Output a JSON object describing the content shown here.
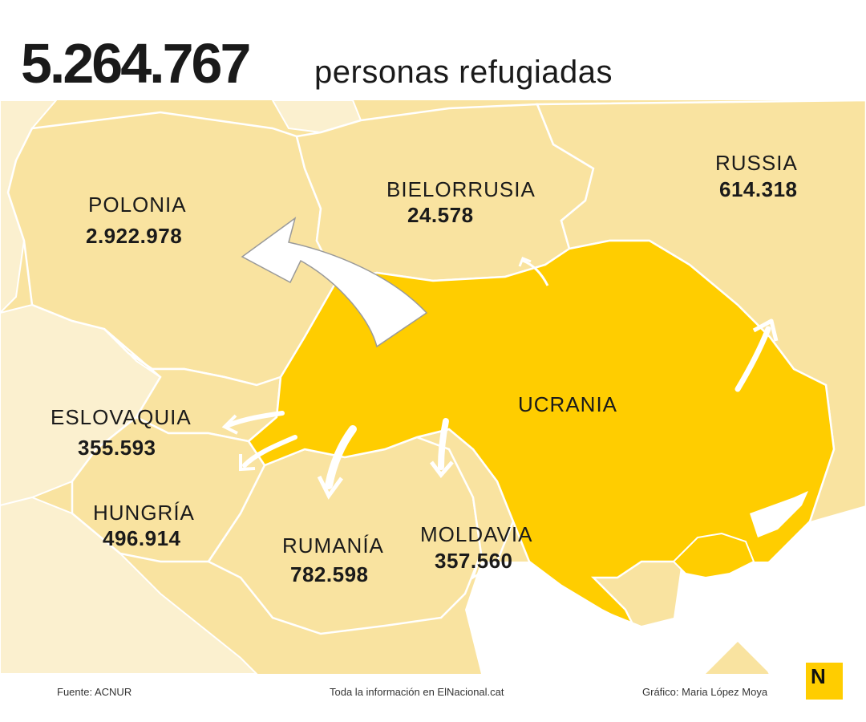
{
  "header": {
    "total": "5.264.767",
    "subtitle": "personas refugiadas"
  },
  "countries": {
    "polonia": {
      "name": "POLONIA",
      "value": "2.922.978"
    },
    "bielorrusia": {
      "name": "BIELORRUSIA",
      "value": "24.578"
    },
    "russia": {
      "name": "RUSSIA",
      "value": "614.318"
    },
    "ucrania": {
      "name": "UCRANIA"
    },
    "eslovaquia": {
      "name": "ESLOVAQUIA",
      "value": "355.593"
    },
    "hungria": {
      "name": "HUNGRÍA",
      "value": "496.914"
    },
    "rumania": {
      "name": "RUMANÍA",
      "value": "782.598"
    },
    "moldavia": {
      "name": "MOLDAVIA",
      "value": "357.560"
    }
  },
  "footer": {
    "source": "Fuente: ACNUR",
    "info": "Toda la información en ElNacional.cat",
    "credit": "Gráfico: Maria López Moya"
  },
  "logo": "N",
  "colors": {
    "ukraine": "#ffcd00",
    "neighbors": "#f9e3a0",
    "far_countries": "#fbf0cf",
    "borders": "#ffffff",
    "arrows": "#ffffff",
    "text": "#1a1a1a"
  }
}
